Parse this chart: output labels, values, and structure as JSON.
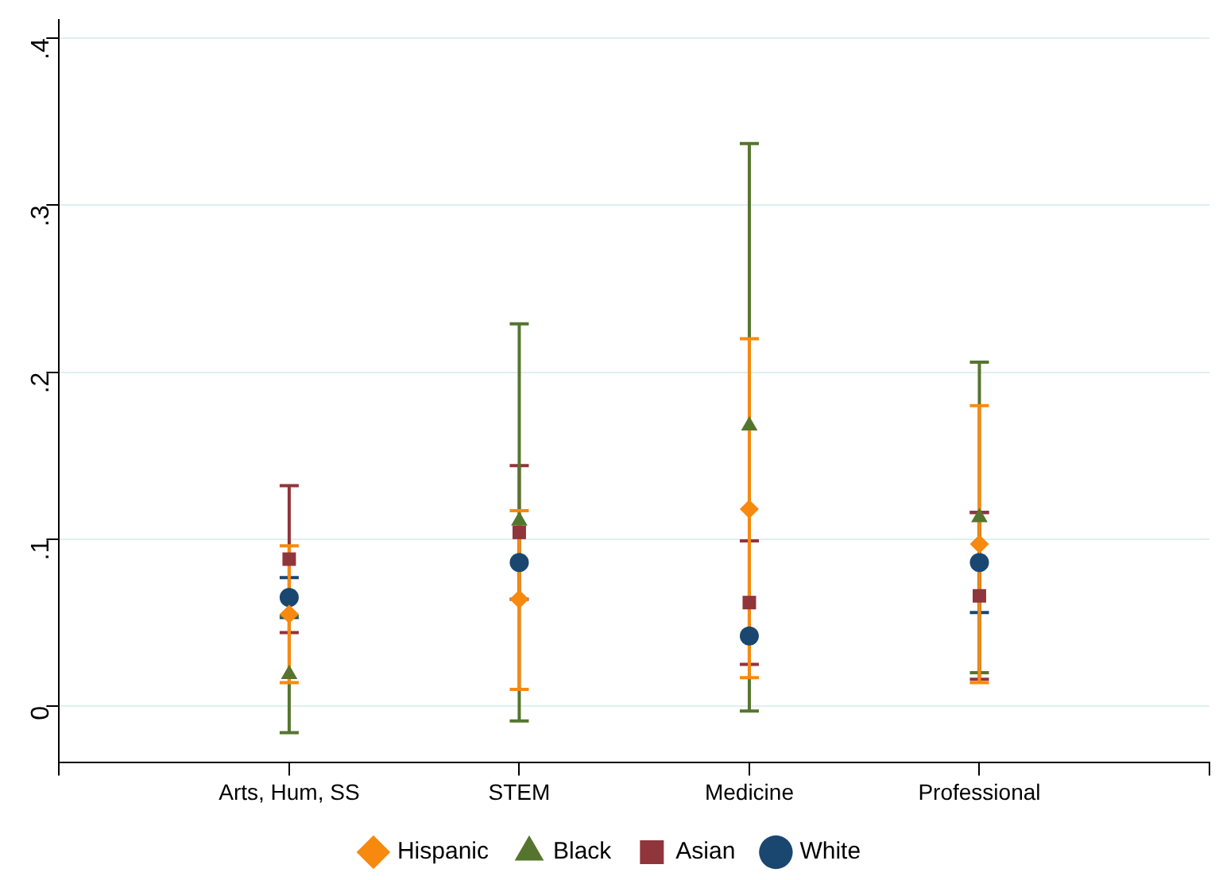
{
  "chart_data": {
    "type": "scatter",
    "categories": [
      null,
      "Arts, Hum, SS",
      "STEM",
      "Medicine",
      "Professional",
      null
    ],
    "series": [
      {
        "name": "White",
        "color": "#1a476f",
        "marker": "circle",
        "values": [
          null,
          0.065,
          0.086,
          0.042,
          0.086,
          null
        ],
        "errors": [
          null,
          [
            0.053,
            0.077
          ],
          null,
          null,
          [
            0.056,
            0.116
          ],
          null
        ]
      },
      {
        "name": "Asian",
        "color": "#90353b",
        "marker": "square",
        "values": [
          null,
          0.088,
          0.104,
          0.062,
          0.066,
          null
        ],
        "errors": [
          null,
          [
            0.044,
            0.132
          ],
          [
            0.064,
            0.144
          ],
          [
            0.025,
            0.099
          ],
          [
            0.016,
            0.116
          ],
          null
        ]
      },
      {
        "name": "Black",
        "color": "#55752f",
        "marker": "triangle",
        "values": [
          null,
          0.019,
          0.111,
          0.168,
          0.113,
          null
        ],
        "errors": [
          null,
          [
            -0.016,
            0.054
          ],
          [
            -0.009,
            0.229
          ],
          [
            -0.003,
            0.337
          ],
          [
            0.02,
            0.206
          ],
          null
        ]
      },
      {
        "name": "Hispanic",
        "color": "#f7890f",
        "marker": "diamond",
        "values": [
          null,
          0.055,
          0.064,
          0.118,
          0.097,
          null
        ],
        "errors": [
          null,
          [
            0.014,
            0.096
          ],
          [
            0.01,
            0.117
          ],
          [
            0.017,
            0.22
          ],
          [
            0.014,
            0.18
          ],
          null
        ]
      }
    ],
    "ylim": [
      -0.034,
      0.411
    ],
    "yticks": [
      0,
      {
        "value": 0.1,
        "label": ".1"
      },
      {
        "value": 0.2,
        "label": ".2"
      },
      {
        "value": 0.3,
        "label": ".3"
      },
      {
        "value": 0.4,
        "label": ".4"
      }
    ],
    "grid": "y",
    "legend": "bottom"
  }
}
